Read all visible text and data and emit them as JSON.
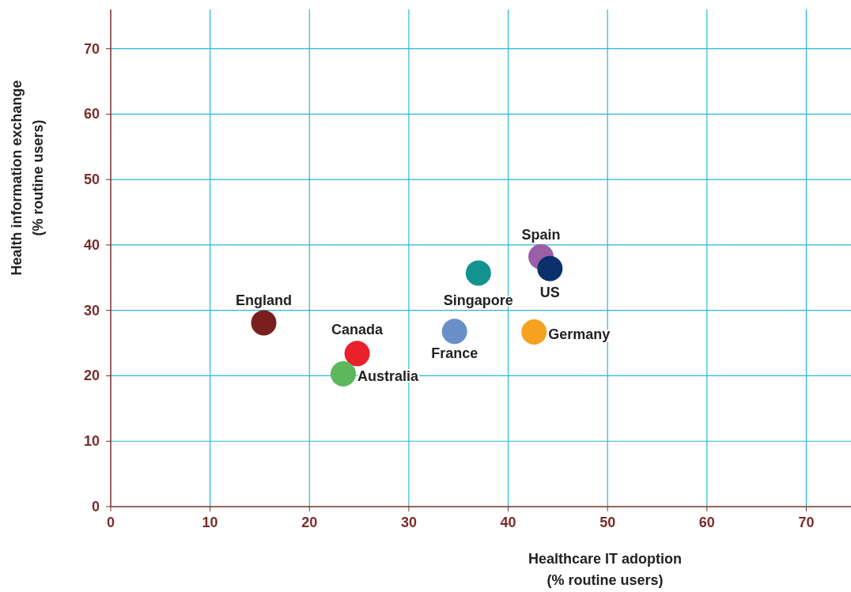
{
  "chart_data": {
    "type": "scatter",
    "xlabel": "Healthcare IT adoption\n(% routine users)",
    "ylabel": "Health information exchange\n(% routine users)",
    "xlim": [
      0,
      74.5
    ],
    "ylim": [
      0,
      76
    ],
    "xticks": [
      0,
      10,
      20,
      30,
      40,
      50,
      60,
      70
    ],
    "yticks": [
      0,
      10,
      20,
      30,
      40,
      50,
      60,
      70
    ],
    "grid": true,
    "marker": "circle",
    "series": [
      {
        "name": "England",
        "color": "#7a1f1f",
        "x": [
          15.4
        ],
        "values": [
          28.1
        ]
      },
      {
        "name": "Canada",
        "color": "#e8212a",
        "x": [
          24.8
        ],
        "values": [
          23.4
        ]
      },
      {
        "name": "Australia",
        "color": "#5cb85c",
        "x": [
          23.4
        ],
        "values": [
          20.3
        ]
      },
      {
        "name": "Singapore",
        "color": "#13938f",
        "x": [
          37.0
        ],
        "values": [
          35.7
        ]
      },
      {
        "name": "France",
        "color": "#6a8fc8",
        "x": [
          34.6
        ],
        "values": [
          26.8
        ]
      },
      {
        "name": "Germany",
        "color": "#f6a21e",
        "x": [
          42.6
        ],
        "values": [
          26.7
        ]
      },
      {
        "name": "Spain",
        "color": "#9b5fa8",
        "x": [
          43.3
        ],
        "values": [
          38.2
        ]
      },
      {
        "name": "US",
        "color": "#0a2f6b",
        "x": [
          44.2
        ],
        "values": [
          36.4
        ]
      }
    ]
  }
}
